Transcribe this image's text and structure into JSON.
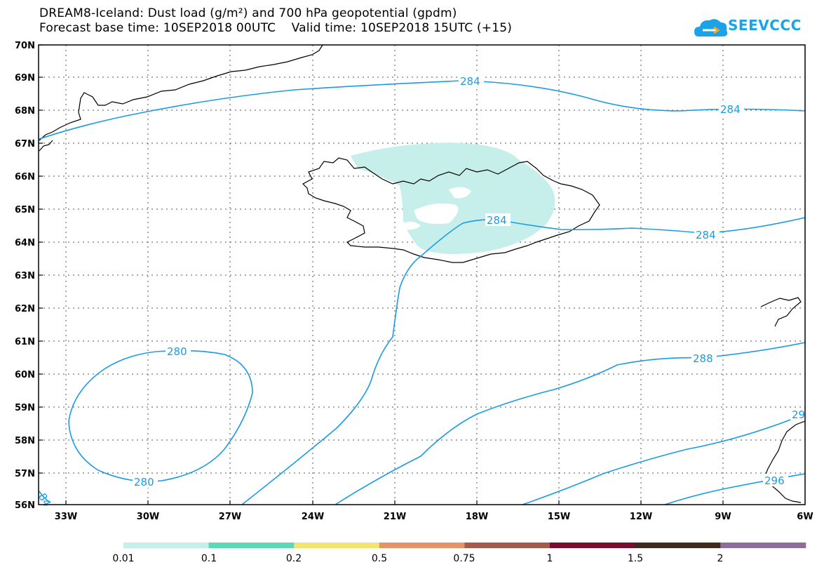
{
  "header": {
    "title_line1": "DREAM8-Iceland: Dust load (g/m²) and 700 hPa geopotential (gpdm)",
    "title_line2": "Forecast base time: 10SEP2018 00UTC    Valid time: 10SEP2018 15UTC (+15)",
    "logo_text": "SEEVCCC"
  },
  "map": {
    "lat_labels": [
      "70N",
      "69N",
      "68N",
      "67N",
      "66N",
      "65N",
      "64N",
      "63N",
      "62N",
      "61N",
      "60N",
      "59N",
      "58N",
      "57N",
      "56N"
    ],
    "lon_labels": [
      "33W",
      "30W",
      "27W",
      "24W",
      "21W",
      "18W",
      "15W",
      "12W",
      "9W",
      "6W"
    ],
    "contour_labels": [
      "284",
      "284",
      "284",
      "284",
      "280",
      "280",
      "288",
      "29",
      "296",
      "84"
    ]
  },
  "colorbar": {
    "colors": [
      "#c6efec",
      "#5cd8b2",
      "#f3e373",
      "#e8926a",
      "#a55a4e",
      "#7a0c2e",
      "#3b2a1d",
      "#8e6c9c"
    ],
    "labels": [
      "0.01",
      "0.1",
      "0.2",
      "0.5",
      "0.75",
      "1",
      "1.5",
      "2"
    ]
  },
  "colors": {
    "contour": "#1a9be6",
    "coast": "#000000",
    "dust_low": "#c6efec"
  }
}
